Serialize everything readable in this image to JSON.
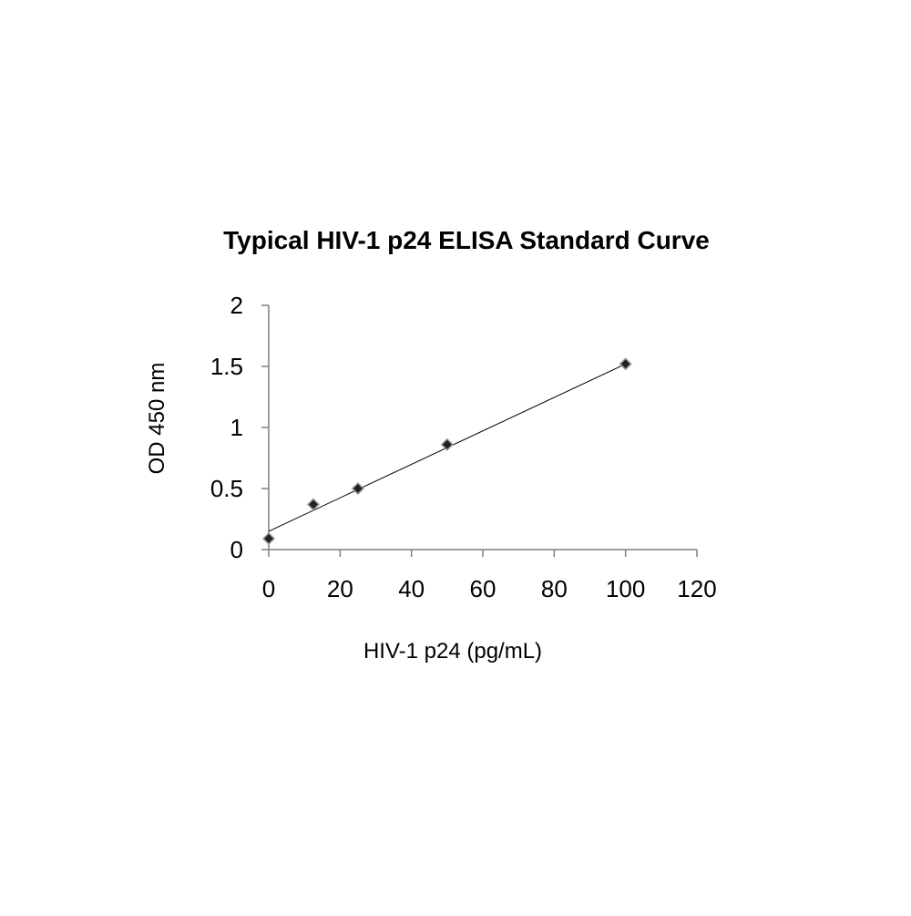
{
  "chart_data": {
    "type": "scatter",
    "title": "Typical HIV-1 p24 ELISA Standard Curve",
    "xlabel": "HIV-1 p24 (pg/mL)",
    "ylabel": "OD 450 nm",
    "xlim": [
      0,
      120
    ],
    "ylim": [
      0,
      2
    ],
    "x_ticks": [
      "0",
      "20",
      "40",
      "60",
      "80",
      "100",
      "120"
    ],
    "y_ticks": [
      "0",
      "0.5",
      "1",
      "1.5",
      "2"
    ],
    "grid": false,
    "legend": "none",
    "marker": "diamond",
    "series": [
      {
        "x": [
          0,
          12.5,
          25,
          50,
          100
        ],
        "y": [
          0.09,
          0.37,
          0.5,
          0.86,
          1.52
        ]
      }
    ],
    "trendline": {
      "type": "linear",
      "from": [
        0,
        0.15
      ],
      "to": [
        100,
        1.52
      ]
    }
  }
}
